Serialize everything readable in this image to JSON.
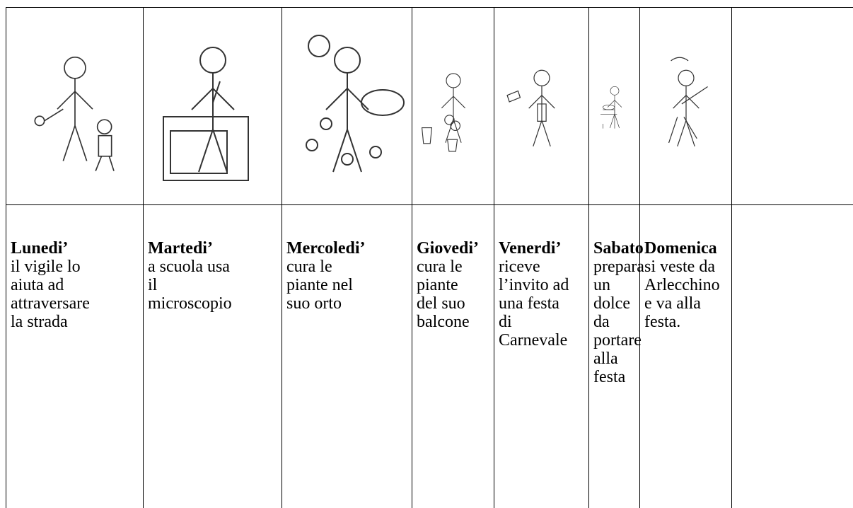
{
  "table": {
    "columns": [
      {
        "day": "Lunedi’",
        "lines": [
          "il vigile lo",
          "aiuta ad",
          "attraversare",
          "la strada"
        ]
      },
      {
        "day": "Martedi’",
        "lines": [
          "a scuola usa",
          "il",
          "microscopio"
        ]
      },
      {
        "day": "Mercoledi’",
        "lines": [
          "cura le",
          "piante nel",
          "suo orto"
        ]
      },
      {
        "day": "Giovedi’",
        "lines": [
          "cura le",
          "piante",
          "del suo",
          "balcone"
        ]
      },
      {
        "day": "Venerdi’",
        "lines": [
          "riceve",
          "l’invito ad",
          "una festa",
          "di",
          "Carnevale"
        ]
      },
      {
        "day": "Sabato",
        "lines": [
          "prepara",
          "un",
          "dolce da",
          "portare",
          "alla",
          "festa"
        ]
      },
      {
        "day": "Domenica",
        "lines": [
          "si veste da",
          "Arlecchino",
          "e va alla",
          "festa."
        ]
      }
    ]
  }
}
